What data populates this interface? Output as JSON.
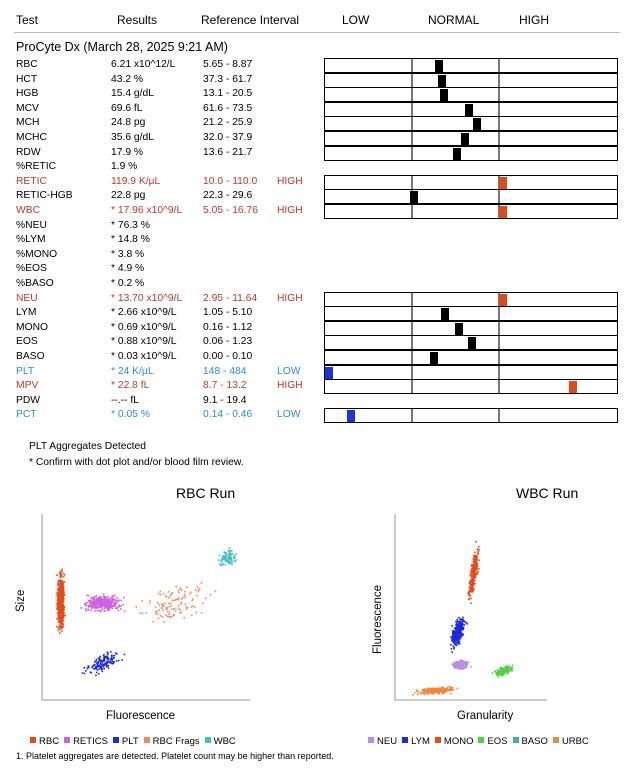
{
  "header": {
    "test": "Test",
    "results": "Results",
    "reference": "Reference Interval",
    "low": "LOW",
    "normal": "NORMAL",
    "high": "HIGH"
  },
  "run_title": "ProCyte Dx (March 28, 2025 9:21 AM)",
  "colors": {
    "high": "#c0392b",
    "low": "#2a8fd0",
    "marker_normal": "#000000",
    "marker_high": "#e04a1a",
    "marker_low": "#1a33e0"
  },
  "rows": [
    {
      "name": "RBC",
      "result": "6.21 x10^12/L",
      "ref": "5.65 - 8.87",
      "flag": "",
      "status": "normal",
      "position": 0.32
    },
    {
      "name": "HCT",
      "result": "43.2 %",
      "ref": "37.3 - 61.7",
      "flag": "",
      "status": "normal",
      "position": 0.36
    },
    {
      "name": "HGB",
      "result": "15.4 g/dL",
      "ref": "13.1 - 20.5",
      "flag": "",
      "status": "normal",
      "position": 0.38
    },
    {
      "name": "MCV",
      "result": "69.6 fL",
      "ref": "61.6 - 73.5",
      "flag": "",
      "status": "normal",
      "position": 0.67
    },
    {
      "name": "MCH",
      "result": "24.8 pg",
      "ref": "21.2 - 25.9",
      "flag": "",
      "status": "normal",
      "position": 0.76
    },
    {
      "name": "MCHC",
      "result": "35.6 g/dL",
      "ref": "32.0 - 37.9",
      "flag": "",
      "status": "normal",
      "position": 0.62
    },
    {
      "name": "RDW",
      "result": "17.9 %",
      "ref": "13.6 - 21.7",
      "flag": "",
      "status": "normal",
      "position": 0.53
    },
    {
      "name": "%RETIC",
      "result": "1.9 %",
      "ref": "",
      "flag": "",
      "status": "none",
      "position": null
    },
    {
      "name": "RETIC",
      "result": "119.9 K/µL",
      "ref": "10.0 - 110.0",
      "flag": "HIGH",
      "status": "high",
      "position": 1.03
    },
    {
      "name": "RETIC-HGB",
      "result": "22.8 pg",
      "ref": "22.3 - 29.6",
      "flag": "",
      "status": "normal",
      "position": 0.03
    },
    {
      "name": "WBC",
      "result": "* 17.96 x10^9/L",
      "ref": "5.05 - 16.76",
      "flag": "HIGH",
      "status": "high",
      "position": 1.03
    },
    {
      "name": "%NEU",
      "result": "* 76.3 %",
      "ref": "",
      "flag": "",
      "status": "none",
      "position": null
    },
    {
      "name": "%LYM",
      "result": "* 14.8 %",
      "ref": "",
      "flag": "",
      "status": "none",
      "position": null
    },
    {
      "name": "%MONO",
      "result": "* 3.8 %",
      "ref": "",
      "flag": "",
      "status": "none",
      "position": null
    },
    {
      "name": "%EOS",
      "result": "* 4.9 %",
      "ref": "",
      "flag": "",
      "status": "none",
      "position": null
    },
    {
      "name": "%BASO",
      "result": "* 0.2 %",
      "ref": "",
      "flag": "",
      "status": "none",
      "position": null
    },
    {
      "name": "NEU",
      "result": "* 13.70 x10^9/L",
      "ref": "2.95 - 11.64",
      "flag": "HIGH",
      "status": "high",
      "position": 1.03
    },
    {
      "name": "LYM",
      "result": "* 2.66 x10^9/L",
      "ref": "1.05 - 5.10",
      "flag": "",
      "status": "normal",
      "position": 0.39
    },
    {
      "name": "MONO",
      "result": "* 0.69 x10^9/L",
      "ref": "0.16 - 1.12",
      "flag": "",
      "status": "normal",
      "position": 0.55
    },
    {
      "name": "EOS",
      "result": "* 0.88 x10^9/L",
      "ref": "0.06 - 1.23",
      "flag": "",
      "status": "normal",
      "position": 0.7
    },
    {
      "name": "BASO",
      "result": "* 0.03 x10^9/L",
      "ref": "0.00 - 0.10",
      "flag": "",
      "status": "normal",
      "position": 0.27
    },
    {
      "name": "PLT",
      "result": "* 24 K/µL",
      "ref": "148 - 484",
      "flag": "LOW",
      "status": "low",
      "position": 0.0
    },
    {
      "name": "MPV",
      "result": "* 22.8 fL",
      "ref": "8.7 - 13.2",
      "flag": "HIGH",
      "status": "high",
      "position": 2.9
    },
    {
      "name": "PDW",
      "result": "--.-- fL",
      "ref": "9.1 - 19.4",
      "flag": "",
      "status": "none",
      "position": null
    },
    {
      "name": "PCT",
      "result": "* 0.05 %",
      "ref": "0.14 - 0.46",
      "flag": "LOW",
      "status": "low",
      "position": 0.25
    }
  ],
  "notes": {
    "aggregates": "PLT Aggregates Detected",
    "confirm": "* Confirm with dot plot and/or blood film review."
  },
  "rbc_run": {
    "title": "RBC Run",
    "xlabel": "Fluorescence",
    "ylabel": "Size",
    "legend": [
      {
        "label": "RBC",
        "color": "#e84a1a"
      },
      {
        "label": "RETICS",
        "color": "#d060e0"
      },
      {
        "label": "PLT",
        "color": "#1a2ae0"
      },
      {
        "label": "RBC Frags",
        "color": "#f08a6a"
      },
      {
        "label": "WBC",
        "color": "#40c0c0"
      }
    ]
  },
  "wbc_run": {
    "title": "WBC Run",
    "xlabel": "Granularity",
    "ylabel": "Fluorescence",
    "legend": [
      {
        "label": "NEU",
        "color": "#b890e0"
      },
      {
        "label": "LYM",
        "color": "#1a2ae0"
      },
      {
        "label": "MONO",
        "color": "#e84a1a"
      },
      {
        "label": "EOS",
        "color": "#50d040"
      },
      {
        "label": "BASO",
        "color": "#40b0b0"
      },
      {
        "label": "URBC",
        "color": "#f0883a"
      }
    ]
  },
  "footnote": "1. Platelet aggregates are detected. Platelet count may be higher than reported."
}
